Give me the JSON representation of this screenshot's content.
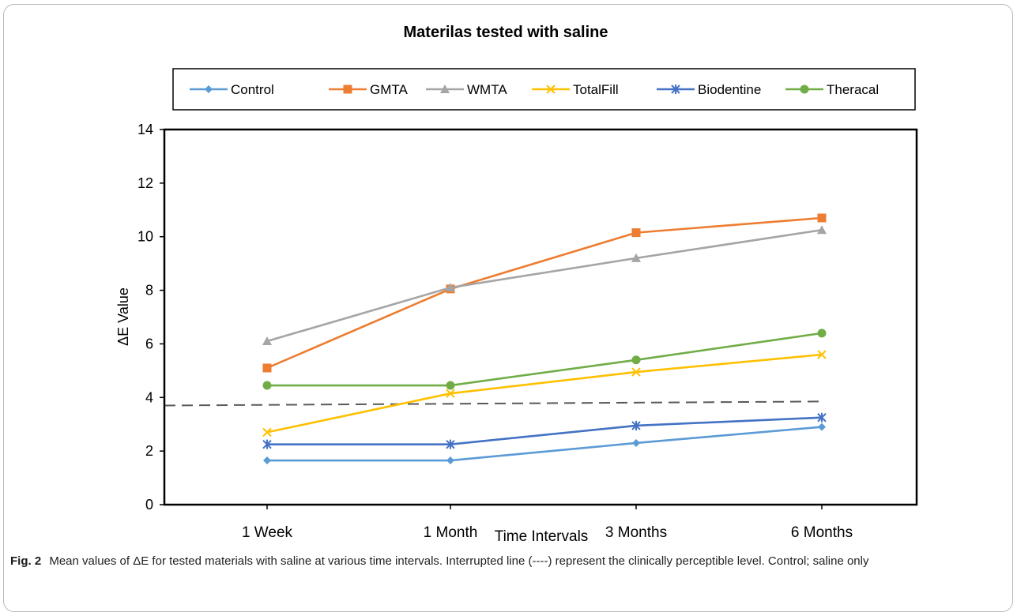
{
  "figure": {
    "caption_label": "Fig. 2",
    "caption_text": "Mean values of ΔE for tested materials with saline at various time intervals. Interrupted line (----) represent the clinically perceptible level. Control; saline only"
  },
  "chart_data": {
    "type": "line",
    "title": "Materilas tested with saline",
    "xlabel": "Time Intervals",
    "ylabel": "ΔE  Value",
    "categories": [
      "1 Week",
      "1 Month",
      "3 Months",
      "6 Months"
    ],
    "ylim": [
      0,
      14
    ],
    "yticks": [
      0,
      2,
      4,
      6,
      8,
      10,
      12,
      14
    ],
    "grid": false,
    "legend_position": "top",
    "series": [
      {
        "name": "Control",
        "values": [
          1.65,
          1.65,
          2.3,
          2.9
        ],
        "color": "#5b9bd5",
        "marker": "diamond"
      },
      {
        "name": "GMTA",
        "values": [
          5.1,
          8.05,
          10.15,
          10.7
        ],
        "color": "#ed7d31",
        "marker": "square"
      },
      {
        "name": "WMTA",
        "values": [
          6.1,
          8.1,
          9.2,
          10.25
        ],
        "color": "#a5a5a5",
        "marker": "triangle"
      },
      {
        "name": "TotalFill",
        "values": [
          2.7,
          4.15,
          4.95,
          5.6
        ],
        "color": "#ffc000",
        "marker": "x"
      },
      {
        "name": "Biodentine",
        "values": [
          2.25,
          2.25,
          2.95,
          3.25
        ],
        "color": "#4472c4",
        "marker": "star"
      },
      {
        "name": "Theracal",
        "values": [
          4.45,
          4.45,
          5.4,
          6.4
        ],
        "color": "#70ad47",
        "marker": "circle"
      }
    ],
    "reference_line": {
      "start": 3.7,
      "end": 3.85,
      "style": "dashed",
      "color": "#595959"
    }
  }
}
